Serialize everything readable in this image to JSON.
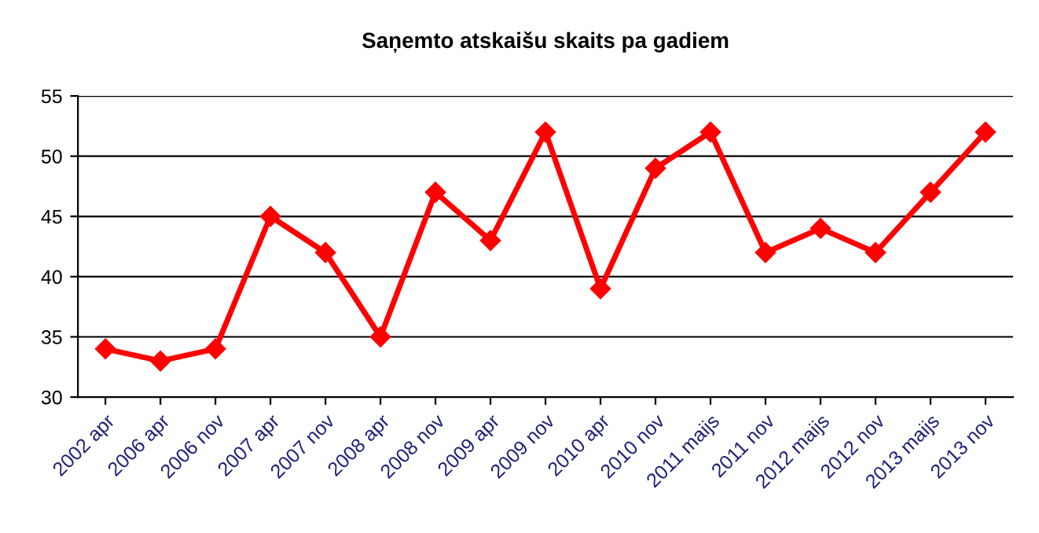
{
  "chart_data": {
    "type": "line",
    "title": "Saņemto atskaišu skaits pa gadiem",
    "categories": [
      "2002 apr",
      "2006 apr",
      "2006 nov",
      "2007 apr",
      "2007 nov",
      "2008 apr",
      "2008 nov",
      "2009 apr",
      "2009 nov",
      "2010 apr",
      "2010 nov",
      "2011 maijs",
      "2011 nov",
      "2012 maijs",
      "2012 nov",
      "2013 maijs",
      "2013 nov"
    ],
    "series": [
      {
        "color": "#ff0000",
        "values": [
          34,
          33,
          34,
          45,
          42,
          35,
          47,
          43,
          52,
          39,
          49,
          52,
          42,
          44,
          42,
          47,
          52
        ]
      }
    ],
    "ylim": [
      30,
      55
    ],
    "yticks": [
      30,
      35,
      40,
      45,
      50,
      55
    ],
    "grid": "y",
    "marker": "diamond",
    "line_style": "solid",
    "legend": false
  }
}
